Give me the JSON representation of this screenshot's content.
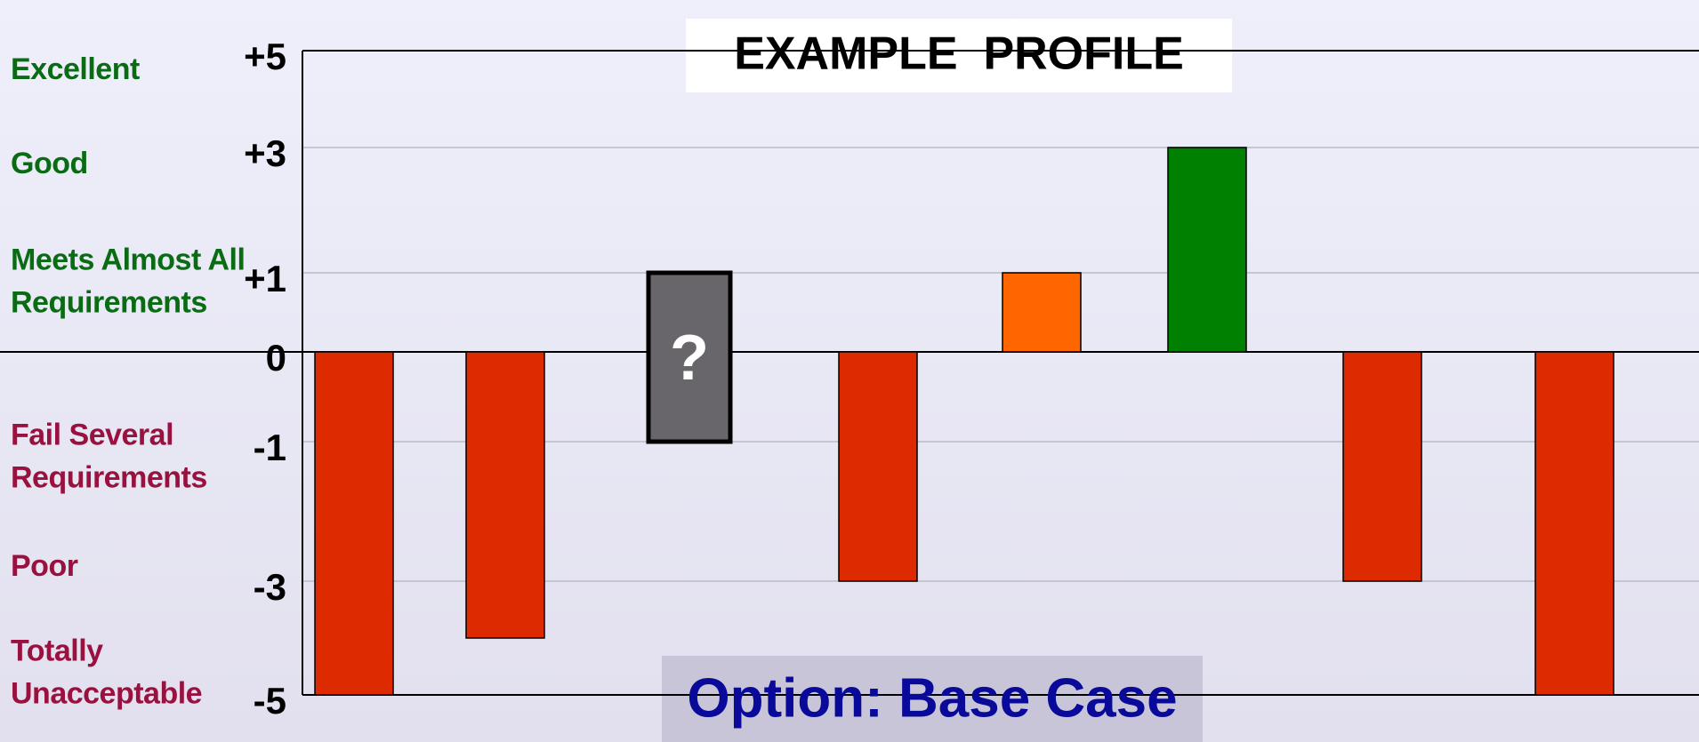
{
  "chart_data": {
    "type": "bar",
    "title": "EXAMPLE  PROFILE",
    "subtitle": "Option: Base Case",
    "categories": [
      null,
      null,
      null,
      null,
      null,
      null,
      null,
      null
    ],
    "values": [
      -5,
      -4,
      null,
      -3,
      1,
      3,
      -3,
      -5
    ],
    "colors": [
      "#dd2a00",
      "#dd2a00",
      "#68666b",
      "#dd2a00",
      "#ff6600",
      "#008000",
      "#dd2a00",
      "#dd2a00"
    ],
    "ylim": [
      -5,
      5
    ],
    "yticks": [
      {
        "value": 5,
        "label": "+5"
      },
      {
        "value": 3,
        "label": "+3"
      },
      {
        "value": 1,
        "label": "+1"
      },
      0,
      -1,
      -3,
      -5
    ],
    "rating_labels": [
      "Excellent",
      "Good",
      "Meets Almost All Requirements",
      "Fail Several Requirements",
      "Poor",
      "Totally Unacceptable"
    ],
    "uncertain": {
      "index": 2,
      "low": -1,
      "high": 1,
      "label": "?",
      "color": "#68666b"
    },
    "grid": true
  }
}
